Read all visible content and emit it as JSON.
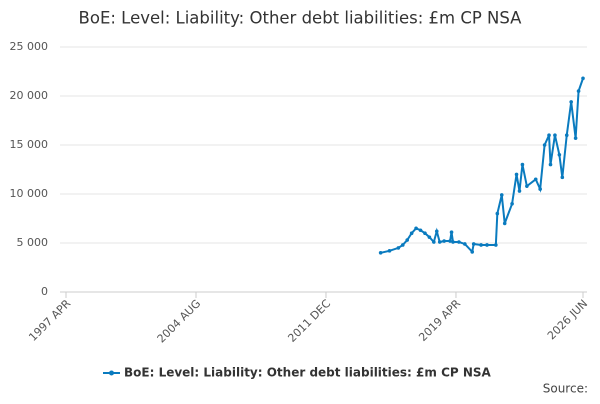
{
  "chart_data": {
    "type": "line",
    "title": "BoE: Level: Liability: Other debt liabilities: £m CP NSA",
    "source": "Source:",
    "x": [
      "2015-01",
      "2015-07",
      "2016-01",
      "2016-04",
      "2016-07",
      "2016-10",
      "2017-01",
      "2017-04",
      "2017-07",
      "2017-10",
      "2018-01",
      "2018-03",
      "2018-05",
      "2018-08",
      "2018-12",
      "2019-01",
      "2019-02",
      "2019-06",
      "2019-10",
      "2020-03",
      "2020-04",
      "2020-09",
      "2021-01",
      "2021-07",
      "2021-08",
      "2021-11",
      "2022-01",
      "2022-06",
      "2022-09",
      "2022-11",
      "2023-01",
      "2023-04",
      "2023-10",
      "2024-01",
      "2024-04",
      "2024-07",
      "2024-08",
      "2024-11",
      "2025-02",
      "2025-04",
      "2025-07",
      "2025-10",
      "2026-01",
      "2026-03",
      "2026-06"
    ],
    "series": [
      {
        "name": "BoE: Level: Liability: Other debt liabilities: £m CP NSA",
        "color": "#0a7bbf",
        "values": [
          4000,
          4200,
          4500,
          4800,
          5300,
          6000,
          6500,
          6300,
          6000,
          5600,
          5100,
          6200,
          5100,
          5200,
          5200,
          6100,
          5100,
          5100,
          4900,
          4100,
          4900,
          4800,
          4800,
          4800,
          8000,
          9900,
          7000,
          9000,
          12000,
          10300,
          13000,
          10800,
          11500,
          10500,
          15000,
          16000,
          13000,
          16000,
          14000,
          11700,
          16000,
          19400,
          15700,
          20500,
          21800
        ]
      }
    ],
    "xlim": [
      "1997-04",
      "2026-06"
    ],
    "xticks": [
      {
        "value": "1997-04",
        "label": "1997 APR"
      },
      {
        "value": "2004-08",
        "label": "2004 AUG"
      },
      {
        "value": "2011-12",
        "label": "2011 DEC"
      },
      {
        "value": "2019-04",
        "label": "2019 APR"
      },
      {
        "value": "2026-06",
        "label": "2026 JUN"
      }
    ],
    "ylim": [
      0,
      25000
    ],
    "yticks": [
      0,
      {
        "value": 5000,
        "label": "5 000"
      },
      {
        "value": 10000,
        "label": "10 000"
      },
      {
        "value": 15000,
        "label": "15 000"
      },
      {
        "value": 20000,
        "label": "20 000"
      },
      {
        "value": 25000,
        "label": "25 000"
      }
    ],
    "grid": true,
    "legend": "bottom"
  }
}
